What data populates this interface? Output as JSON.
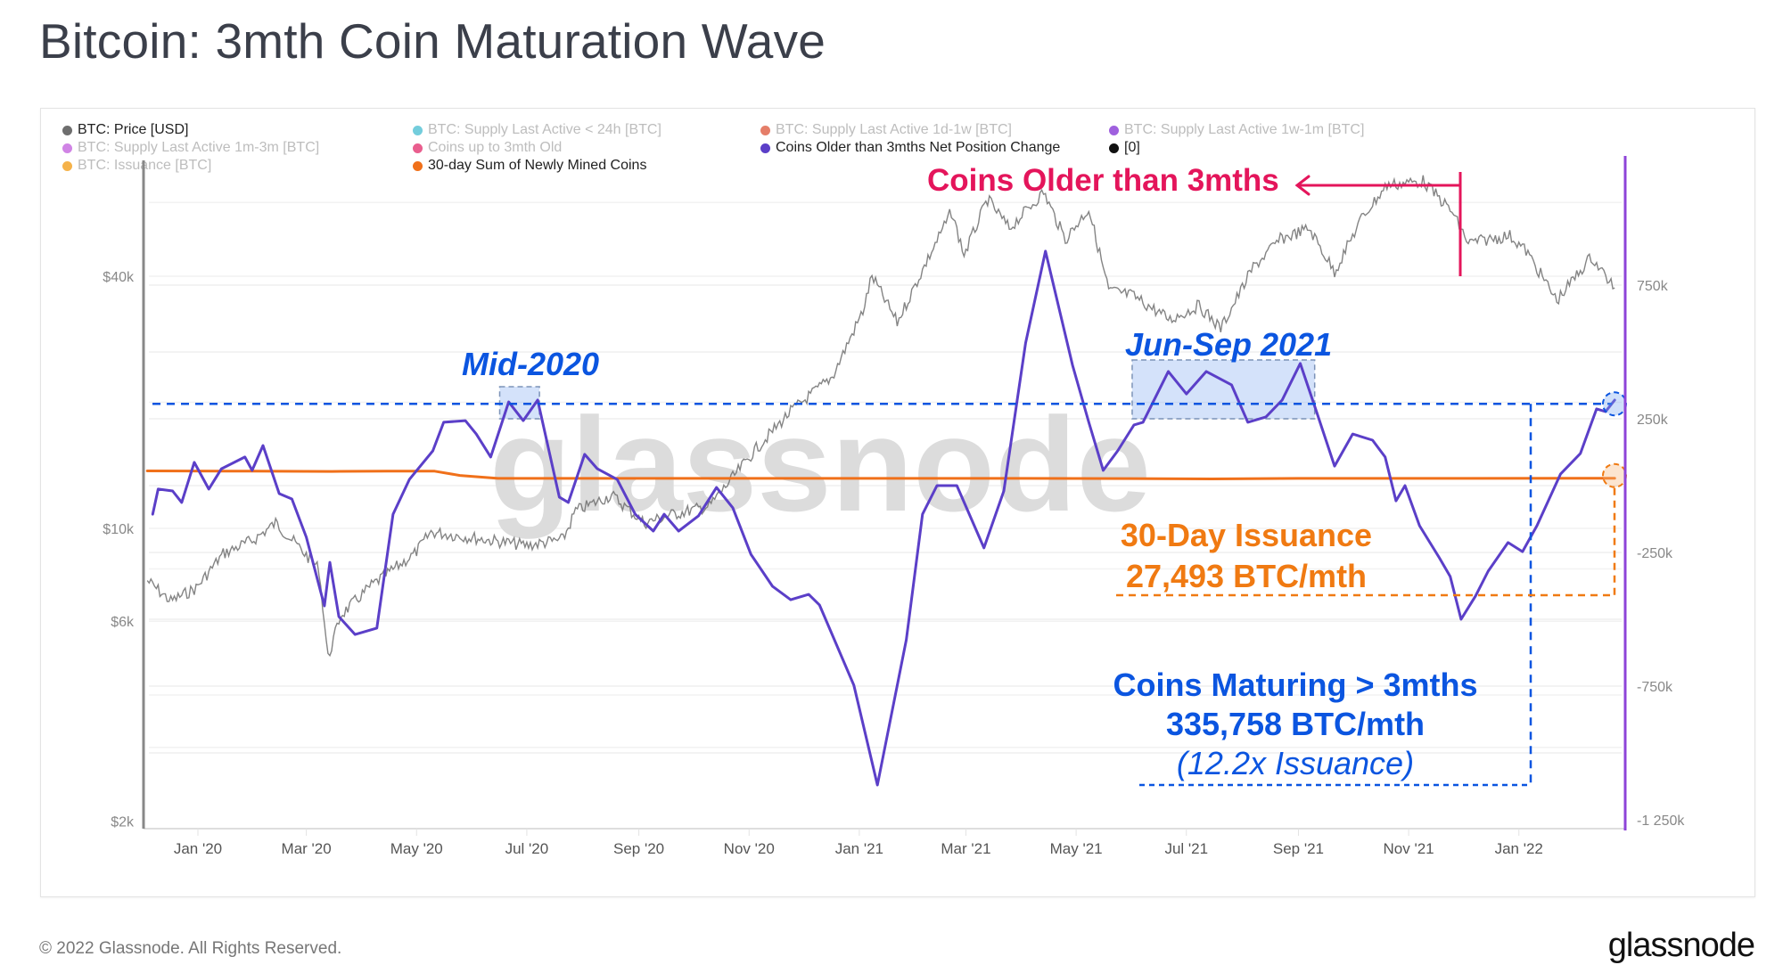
{
  "page": {
    "title": "Bitcoin: 3mth Coin Maturation Wave",
    "footer_copyright": "© 2022 Glassnode. All Rights Reserved.",
    "footer_logo": "glassnode",
    "watermark": "glassnode"
  },
  "legend": [
    {
      "label": "BTC: Price [USD]",
      "color": "#6e6e6e",
      "active": true
    },
    {
      "label": "BTC: Supply Last Active < 24h [BTC]",
      "color": "#5bc4d6",
      "active": false
    },
    {
      "label": "BTC: Supply Last Active 1d-1w [BTC]",
      "color": "#e0674f",
      "active": false
    },
    {
      "label": "BTC: Supply Last Active 1w-1m [BTC]",
      "color": "#8e44d8",
      "active": false
    },
    {
      "label": "BTC: Supply Last Active 1m-3m [BTC]",
      "color": "#c86ee0",
      "active": false
    },
    {
      "label": "Coins up to 3mth Old",
      "color": "#e5427a",
      "active": false
    },
    {
      "label": "Coins Older than 3mths Net Position Change",
      "color": "#5b3fc8",
      "active": true
    },
    {
      "label": "[0]",
      "color": "#111111",
      "active": true
    },
    {
      "label": "BTC: Issuance [BTC]",
      "color": "#f3a42a",
      "active": false
    },
    {
      "label": "30-day Sum of Newly Mined Coins",
      "color": "#f0701a",
      "active": true
    }
  ],
  "annotations": {
    "coins_older": "Coins Older than 3mths",
    "mid_2020": "Mid-2020",
    "jun_sep_2021": "Jun-Sep 2021",
    "issuance_line1": "30-Day Issuance",
    "issuance_line2": "27,493 BTC/mth",
    "maturing_line1": "Coins Maturing > 3mths",
    "maturing_line2": "335,758 BTC/mth",
    "maturing_line3": "(12.2x Issuance)"
  },
  "colors": {
    "price": "#6e6e6e",
    "net_position": "#5b3fc8",
    "issuance": "#f0701a",
    "annotation_blue": "#0b55e0",
    "annotation_pink": "#e4155b",
    "annotation_orange": "#f07a12",
    "right_axis": "#8e44d8"
  },
  "chart_data": {
    "type": "line",
    "title": "Bitcoin: 3mth Coin Maturation Wave",
    "xlabel": "",
    "x_range": [
      "2019-12-04",
      "2022-02-21"
    ],
    "x_ticks": [
      "Jan '20",
      "Mar '20",
      "May '20",
      "Jul '20",
      "Sep '20",
      "Nov '20",
      "Jan '21",
      "Mar '21",
      "May '21",
      "Jul '21",
      "Sep '21",
      "Nov '21",
      "Jan '22"
    ],
    "x_tick_dates": [
      "2020-01-01",
      "2020-03-01",
      "2020-05-01",
      "2020-07-01",
      "2020-09-01",
      "2020-11-01",
      "2021-01-01",
      "2021-03-01",
      "2021-05-01",
      "2021-07-01",
      "2021-09-01",
      "2021-11-01",
      "2022-01-01"
    ],
    "y_left": {
      "label": "BTC: Price [USD]",
      "scale": "log",
      "ticks": [
        "$2k",
        "$6k",
        "$10k",
        "$40k"
      ],
      "tick_values": [
        2000,
        6000,
        10000,
        40000
      ],
      "range": [
        2000,
        70000
      ]
    },
    "y_right": {
      "label": "BTC",
      "scale": "linear",
      "ticks": [
        "-1 250k",
        "-750k",
        "-250k",
        "250k",
        "750k"
      ],
      "tick_values": [
        -1250000,
        -750000,
        -250000,
        250000,
        750000
      ],
      "range": [
        -1250000,
        1250000
      ]
    },
    "grid": true,
    "legend_position": "top-left",
    "series": [
      {
        "name": "Coins Older than 3mths Net Position Change",
        "axis": "right",
        "unit": "BTC (thousands)",
        "points": [
          [
            "2019-12-07",
            -107
          ],
          [
            "2019-12-10",
            -13
          ],
          [
            "2019-12-18",
            -20
          ],
          [
            "2019-12-23",
            -63
          ],
          [
            "2019-12-30",
            87
          ],
          [
            "2020-01-07",
            -13
          ],
          [
            "2020-01-14",
            63
          ],
          [
            "2020-01-27",
            107
          ],
          [
            "2020-01-31",
            57
          ],
          [
            "2020-02-06",
            150
          ],
          [
            "2020-02-15",
            -30
          ],
          [
            "2020-02-22",
            -50
          ],
          [
            "2020-03-01",
            -193
          ],
          [
            "2020-03-11",
            -450
          ],
          [
            "2020-03-14",
            -287
          ],
          [
            "2020-03-19",
            -490
          ],
          [
            "2020-03-28",
            -557
          ],
          [
            "2020-04-09",
            -533
          ],
          [
            "2020-04-18",
            -107
          ],
          [
            "2020-04-27",
            23
          ],
          [
            "2020-05-10",
            130
          ],
          [
            "2020-05-16",
            237
          ],
          [
            "2020-05-28",
            243
          ],
          [
            "2020-06-03",
            193
          ],
          [
            "2020-06-11",
            107
          ],
          [
            "2020-06-21",
            313
          ],
          [
            "2020-06-29",
            243
          ],
          [
            "2020-07-07",
            320
          ],
          [
            "2020-07-19",
            -43
          ],
          [
            "2020-07-24",
            -63
          ],
          [
            "2020-08-02",
            117
          ],
          [
            "2020-08-09",
            63
          ],
          [
            "2020-08-20",
            23
          ],
          [
            "2020-08-30",
            -107
          ],
          [
            "2020-09-09",
            -170
          ],
          [
            "2020-09-15",
            -107
          ],
          [
            "2020-09-23",
            -170
          ],
          [
            "2020-10-04",
            -113
          ],
          [
            "2020-10-14",
            -7
          ],
          [
            "2020-10-23",
            -83
          ],
          [
            "2020-11-02",
            -257
          ],
          [
            "2020-11-14",
            -377
          ],
          [
            "2020-11-24",
            -427
          ],
          [
            "2020-12-04",
            -407
          ],
          [
            "2020-12-10",
            -447
          ],
          [
            "2020-12-29",
            -747
          ],
          [
            "2021-01-11",
            -1120
          ],
          [
            "2021-01-27",
            -577
          ],
          [
            "2021-02-05",
            -107
          ],
          [
            "2021-02-13",
            0
          ],
          [
            "2021-02-24",
            0
          ],
          [
            "2021-03-11",
            -233
          ],
          [
            "2021-03-22",
            -20
          ],
          [
            "2021-04-03",
            533
          ],
          [
            "2021-04-14",
            877
          ],
          [
            "2021-04-29",
            450
          ],
          [
            "2021-05-08",
            237
          ],
          [
            "2021-05-16",
            57
          ],
          [
            "2021-05-24",
            130
          ],
          [
            "2021-06-02",
            227
          ],
          [
            "2021-06-07",
            237
          ],
          [
            "2021-06-21",
            427
          ],
          [
            "2021-07-01",
            343
          ],
          [
            "2021-07-12",
            427
          ],
          [
            "2021-07-26",
            377
          ],
          [
            "2021-08-04",
            237
          ],
          [
            "2021-08-14",
            257
          ],
          [
            "2021-08-23",
            320
          ],
          [
            "2021-09-02",
            457
          ],
          [
            "2021-09-11",
            277
          ],
          [
            "2021-09-21",
            73
          ],
          [
            "2021-10-01",
            193
          ],
          [
            "2021-10-12",
            170
          ],
          [
            "2021-10-19",
            107
          ],
          [
            "2021-10-25",
            -57
          ],
          [
            "2021-10-30",
            0
          ],
          [
            "2021-11-07",
            -150
          ],
          [
            "2021-11-18",
            -270
          ],
          [
            "2021-11-24",
            -340
          ],
          [
            "2021-11-30",
            -500
          ],
          [
            "2021-12-08",
            -413
          ],
          [
            "2021-12-15",
            -320
          ],
          [
            "2021-12-26",
            -213
          ],
          [
            "2022-01-03",
            -247
          ],
          [
            "2022-01-11",
            -150
          ],
          [
            "2022-01-24",
            43
          ],
          [
            "2022-02-04",
            120
          ],
          [
            "2022-02-13",
            287
          ],
          [
            "2022-02-18",
            277
          ],
          [
            "2022-02-23",
            320
          ]
        ]
      },
      {
        "name": "30-day Sum of Newly Mined Coins",
        "axis": "right",
        "unit": "BTC (thousands)",
        "points": [
          [
            "2019-12-04",
            55
          ],
          [
            "2020-02-01",
            54
          ],
          [
            "2020-03-15",
            53
          ],
          [
            "2020-04-15",
            54
          ],
          [
            "2020-05-11",
            54
          ],
          [
            "2020-05-25",
            38
          ],
          [
            "2020-06-15",
            27
          ],
          [
            "2020-09-01",
            27
          ],
          [
            "2021-01-01",
            27
          ],
          [
            "2021-04-01",
            27
          ],
          [
            "2021-06-15",
            26
          ],
          [
            "2021-07-15",
            25
          ],
          [
            "2021-09-01",
            27
          ],
          [
            "2022-02-23",
            27.5
          ]
        ]
      },
      {
        "name": "BTC: Price [USD]",
        "axis": "left",
        "unit": "USD",
        "points": [
          [
            "2019-12-04",
            7500
          ],
          [
            "2019-12-17",
            6700
          ],
          [
            "2019-12-31",
            7200
          ],
          [
            "2020-01-15",
            8700
          ],
          [
            "2020-02-01",
            9400
          ],
          [
            "2020-02-13",
            10300
          ],
          [
            "2020-02-25",
            9100
          ],
          [
            "2020-03-08",
            8000
          ],
          [
            "2020-03-13",
            4900
          ],
          [
            "2020-03-20",
            6200
          ],
          [
            "2020-04-06",
            7300
          ],
          [
            "2020-04-30",
            8700
          ],
          [
            "2020-05-09",
            9800
          ],
          [
            "2020-06-01",
            9500
          ],
          [
            "2020-07-01",
            9100
          ],
          [
            "2020-07-21",
            9400
          ],
          [
            "2020-07-28",
            11000
          ],
          [
            "2020-08-17",
            12000
          ],
          [
            "2020-09-04",
            10300
          ],
          [
            "2020-09-20",
            10800
          ],
          [
            "2020-10-10",
            11300
          ],
          [
            "2020-10-21",
            12900
          ],
          [
            "2020-11-05",
            15500
          ],
          [
            "2020-11-24",
            19000
          ],
          [
            "2020-12-17",
            23000
          ],
          [
            "2021-01-03",
            33000
          ],
          [
            "2021-01-08",
            40000
          ],
          [
            "2021-01-22",
            31000
          ],
          [
            "2021-02-08",
            44000
          ],
          [
            "2021-02-21",
            57000
          ],
          [
            "2021-02-28",
            45000
          ],
          [
            "2021-03-13",
            61000
          ],
          [
            "2021-03-25",
            52000
          ],
          [
            "2021-04-13",
            63500
          ],
          [
            "2021-04-25",
            49000
          ],
          [
            "2021-05-08",
            58000
          ],
          [
            "2021-05-19",
            37000
          ],
          [
            "2021-06-01",
            36000
          ],
          [
            "2021-06-22",
            31500
          ],
          [
            "2021-07-08",
            34000
          ],
          [
            "2021-07-20",
            30000
          ],
          [
            "2021-08-07",
            42000
          ],
          [
            "2021-08-22",
            49000
          ],
          [
            "2021-09-07",
            52000
          ],
          [
            "2021-09-21",
            41000
          ],
          [
            "2021-10-06",
            55000
          ],
          [
            "2021-10-20",
            66000
          ],
          [
            "2021-11-09",
            67500
          ],
          [
            "2021-11-25",
            57000
          ],
          [
            "2021-12-04",
            48000
          ],
          [
            "2021-12-27",
            50000
          ],
          [
            "2022-01-05",
            46000
          ],
          [
            "2022-01-22",
            35000
          ],
          [
            "2022-02-10",
            44500
          ],
          [
            "2022-02-23",
            37500
          ]
        ]
      },
      {
        "name": "[0]",
        "axis": "right",
        "unit": "BTC (thousands)",
        "points": [
          [
            "2019-12-04",
            0
          ],
          [
            "2022-02-23",
            0
          ]
        ]
      }
    ],
    "annotations": [
      {
        "text": "Coins Older than 3mths",
        "type": "arrow-left",
        "color": "#e4155b",
        "from_date": "2021-12-08"
      },
      {
        "text": "Mid-2020",
        "type": "highlight-box",
        "date_range": [
          "2020-06-16",
          "2020-07-08"
        ]
      },
      {
        "text": "Jun-Sep 2021",
        "type": "highlight-box",
        "date_range": [
          "2021-06-01",
          "2021-09-10"
        ]
      },
      {
        "text": "30-Day Issuance 27,493 BTC/mth",
        "type": "reference",
        "value": 27493
      },
      {
        "text": "Coins Maturing > 3mths 335,758 BTC/mth (12.2x Issuance)",
        "type": "reference-line",
        "value": 335758
      }
    ]
  }
}
